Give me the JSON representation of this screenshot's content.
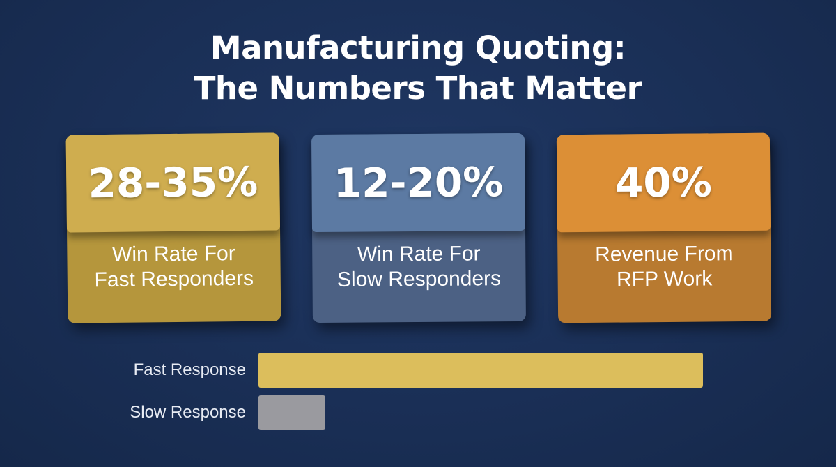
{
  "title": {
    "line1": "Manufacturing Quoting:",
    "line2": "The Numbers That Matter"
  },
  "cards": [
    {
      "value": "28-35%",
      "label_line1": "Win Rate For",
      "label_line2": "Fast Responders",
      "color": "#cfad4f"
    },
    {
      "value": "12-20%",
      "label_line1": "Win Rate For",
      "label_line2": "Slow Responders",
      "color": "#5c7aa3"
    },
    {
      "value": "40%",
      "label_line1": "Revenue From",
      "label_line2": "RFP Work",
      "color": "#dc8f36"
    }
  ],
  "chart_data": {
    "type": "bar",
    "orientation": "horizontal",
    "categories": [
      "Fast Response",
      "Slow Response"
    ],
    "values": [
      100,
      15
    ],
    "colors": [
      "#dcbe5c",
      "#9a9a9f"
    ],
    "xlim": [
      0,
      100
    ],
    "grid": false
  }
}
